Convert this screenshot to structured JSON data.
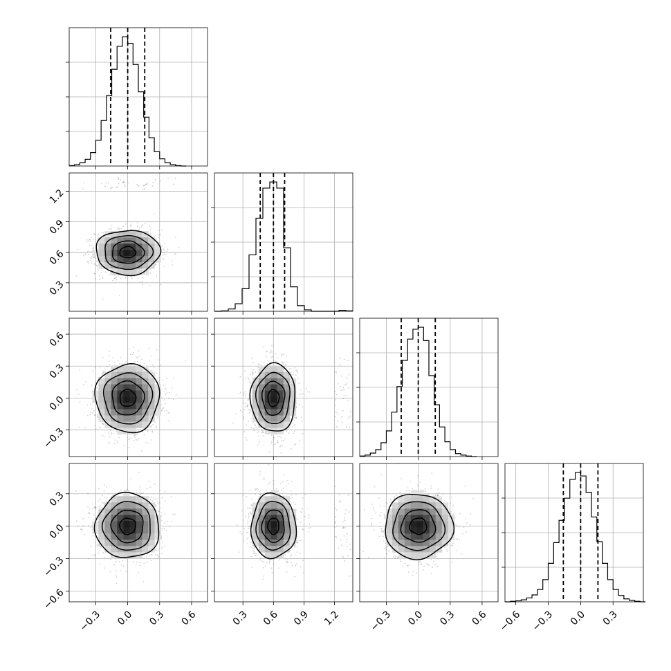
{
  "chart_data": {
    "type": "corner",
    "grid": true,
    "n_params": 4,
    "params": [
      {
        "axis_range": [
          -0.55,
          0.75
        ],
        "ticks": [
          -0.3,
          0.0,
          0.3,
          0.6
        ],
        "tick_labels": [
          "−0.3",
          "0.0",
          "0.3",
          "0.6"
        ],
        "center": 0.0,
        "sigma": 0.15,
        "quantiles": [
          -0.16,
          0.0,
          0.16
        ]
      },
      {
        "axis_range": [
          0.02,
          1.38
        ],
        "ticks": [
          0.3,
          0.6,
          0.9,
          1.2
        ],
        "tick_labels": [
          "0.3",
          "0.6",
          "0.9",
          "1.2"
        ],
        "center": 0.6,
        "sigma": 0.11,
        "quantiles": [
          0.47,
          0.6,
          0.71
        ]
      },
      {
        "axis_range": [
          -0.55,
          0.75
        ],
        "ticks": [
          -0.3,
          0.0,
          0.3,
          0.6
        ],
        "tick_labels": [
          "−0.3",
          "0.0",
          "0.3",
          "0.6"
        ],
        "center": 0.0,
        "sigma": 0.16,
        "quantiles": [
          -0.16,
          0.0,
          0.16
        ]
      },
      {
        "axis_range": [
          -0.7,
          0.58
        ],
        "ticks": [
          -0.6,
          -0.3,
          0.0,
          0.3
        ],
        "tick_labels": [
          "−0.6",
          "−0.3",
          "0.0",
          "0.3"
        ],
        "center": 0.0,
        "sigma": 0.15,
        "quantiles": [
          -0.16,
          0.0,
          0.16
        ]
      }
    ],
    "histograms": [
      {
        "param": 0,
        "x": [
          -0.525,
          -0.475,
          -0.425,
          -0.375,
          -0.325,
          -0.275,
          -0.225,
          -0.175,
          -0.125,
          -0.075,
          -0.025,
          0.025,
          0.075,
          0.125,
          0.175,
          0.225,
          0.275,
          0.325,
          0.375,
          0.425,
          0.475,
          0.525
        ],
        "values": [
          1,
          3,
          7,
          14,
          28,
          54,
          95,
          147,
          202,
          250,
          270,
          256,
          212,
          155,
          102,
          59,
          30,
          15,
          7,
          3,
          1,
          0
        ]
      },
      {
        "param": 1,
        "x": [
          0.054,
          0.122,
          0.19,
          0.258,
          0.326,
          0.394,
          0.462,
          0.53,
          0.598,
          0.666,
          0.734,
          0.802,
          0.87,
          0.938,
          1.006,
          1.074,
          1.142,
          1.21,
          1.278,
          1.346
        ],
        "values": [
          0,
          1,
          5,
          16,
          48,
          120,
          198,
          262,
          275,
          262,
          135,
          52,
          12,
          3,
          0,
          0,
          0,
          0,
          2,
          1
        ]
      },
      {
        "param": 2,
        "x": [
          -0.525,
          -0.475,
          -0.425,
          -0.375,
          -0.325,
          -0.275,
          -0.225,
          -0.175,
          -0.125,
          -0.075,
          -0.025,
          0.025,
          0.075,
          0.125,
          0.175,
          0.225,
          0.275,
          0.325,
          0.375,
          0.425,
          0.475,
          0.525
        ],
        "values": [
          1,
          3,
          7,
          14,
          28,
          52,
          90,
          142,
          195,
          238,
          258,
          262,
          235,
          164,
          105,
          60,
          30,
          14,
          6,
          3,
          1,
          0
        ]
      },
      {
        "param": 3,
        "x": [
          -0.675,
          -0.625,
          -0.575,
          -0.525,
          -0.475,
          -0.425,
          -0.375,
          -0.325,
          -0.275,
          -0.225,
          -0.175,
          -0.125,
          -0.075,
          -0.025,
          0.025,
          0.075,
          0.125,
          0.175,
          0.225,
          0.275,
          0.325,
          0.375,
          0.425,
          0.475,
          0.525,
          0.575
        ],
        "values": [
          0,
          1,
          2,
          4,
          8,
          14,
          25,
          45,
          78,
          120,
          165,
          210,
          248,
          262,
          255,
          222,
          172,
          122,
          78,
          45,
          25,
          13,
          6,
          3,
          1,
          0
        ]
      }
    ],
    "pairs": [
      {
        "x_param": 0,
        "y_param": 1,
        "corr": 0.0,
        "outlier_strip": [
          1.22,
          1.34
        ]
      },
      {
        "x_param": 0,
        "y_param": 2,
        "corr": 0.0
      },
      {
        "x_param": 1,
        "y_param": 2,
        "corr": 0.0,
        "outlier_strip": [
          1.2,
          1.36
        ]
      },
      {
        "x_param": 0,
        "y_param": 3,
        "corr": 0.0
      },
      {
        "x_param": 1,
        "y_param": 3,
        "corr": 0.0,
        "outlier_strip": [
          1.2,
          1.36
        ]
      },
      {
        "x_param": 2,
        "y_param": 3,
        "corr": 0.0
      }
    ],
    "contour_levels_sigma": [
      0.5,
      1.0,
      1.5,
      2.0
    ]
  }
}
